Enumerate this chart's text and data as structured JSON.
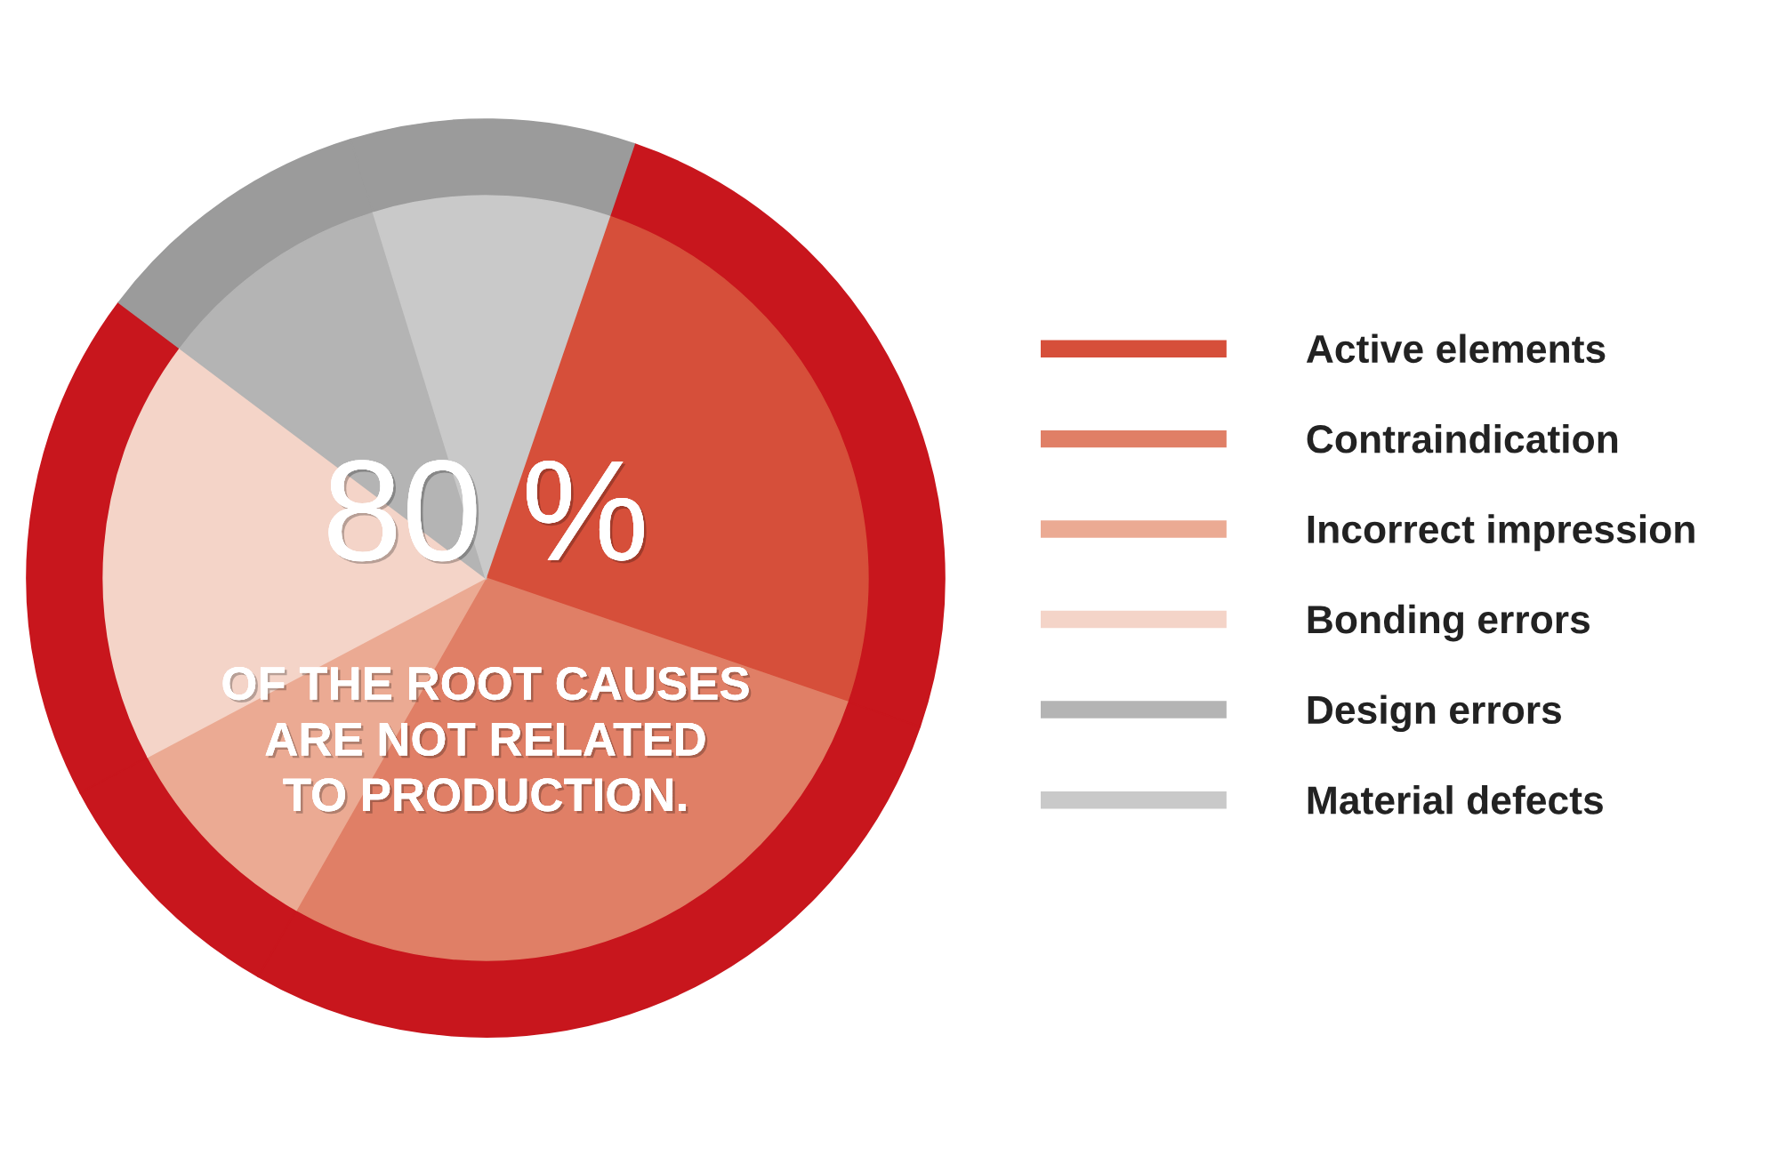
{
  "chart_data": {
    "type": "pie",
    "categories": [
      "Active elements",
      "Contraindication",
      "Incorrect impression",
      "Bonding errors",
      "Design errors",
      "Material defects"
    ],
    "series": [
      {
        "type": "donut",
        "values": [
          25,
          28,
          9,
          18,
          10,
          10
        ],
        "colors": [
          "#c8161d",
          "#c8161d",
          "#c8161d",
          "#c8161d",
          "#9b9b9b",
          "#9b9b9b"
        ]
      },
      {
        "values": [
          25,
          28,
          9,
          18,
          10,
          10
        ],
        "colors": [
          "#d64f3a",
          "#e07f66",
          "#ebaa93",
          "#f4d4c8",
          "#b4b4b4",
          "#c9c9c9"
        ]
      }
    ],
    "legend": "right",
    "annotations": [
      "80 %",
      "OF THE ROOT CAUSES\nARE NOT RELATED\nTO PRODUCTION."
    ]
  }
}
